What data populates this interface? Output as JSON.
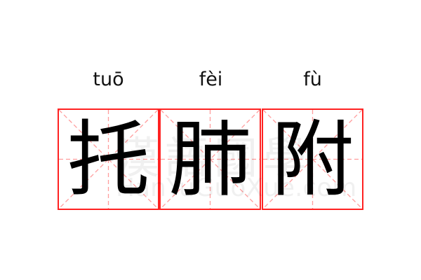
{
  "characters": [
    {
      "hanzi": "托",
      "pinyin": "tuō"
    },
    {
      "hanzi": "肺",
      "pinyin": "fèi"
    },
    {
      "hanzi": "附",
      "pinyin": "fù"
    }
  ],
  "watermark": {
    "text": "漢語國學",
    "url": "HanYuGuoXue.com"
  },
  "colors": {
    "grid_border": "#ff2222",
    "guide_lines": "#ff9999",
    "text": "#000000"
  }
}
